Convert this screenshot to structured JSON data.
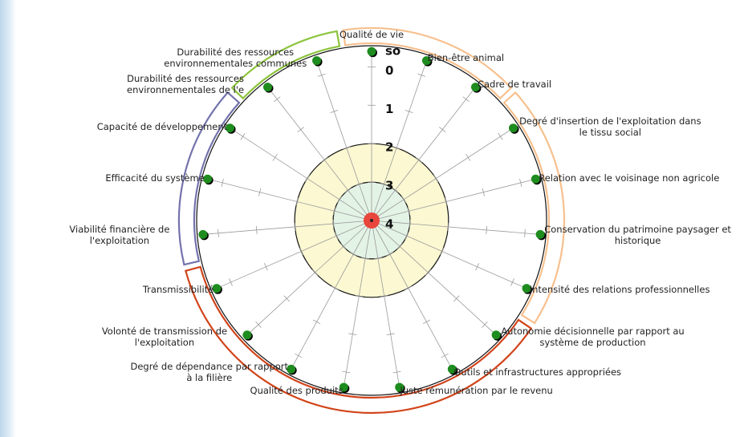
{
  "chart_data": {
    "type": "radar",
    "categories": [
      "Qualité de vie",
      "Bien-être animal",
      "Cadre de travail",
      "Degré d'insertion de l'exploitation dans le tissu social",
      "Relation avec le voisinage non agricole",
      "Conservation du patrimoine paysager et historique",
      "Intensité des relations professionnelles",
      "Autonomie décisionnelle par rapport au système de production",
      "Outils et infrastructures appropriées",
      "Juste rémunération par le revenu",
      "Qualité des produits",
      "Degré de dépendance par rapport à la filière",
      "Volonté de transmission de l'exploitation",
      "Transmissibilité",
      "Viabilité financière de l'exploitation",
      "Efficacité du système",
      "Capacité de développement",
      "Durabilité des ressources environnementales de l'e",
      "Durabilité des ressources environnementales communes"
    ],
    "values": [
      -0.4,
      -0.4,
      -0.4,
      -0.4,
      -0.4,
      -0.4,
      -0.4,
      -0.4,
      -0.4,
      -0.4,
      -0.4,
      -0.4,
      -0.4,
      -0.4,
      -0.4,
      -0.4,
      -0.4,
      -0.4,
      -0.4
    ],
    "color": "#1e8c1e",
    "rlim": [
      4,
      -0.55
    ],
    "rticks": [
      {
        "value": -0.4,
        "label": "so"
      },
      0,
      1,
      2,
      3,
      4
    ],
    "bands": [
      {
        "value": 2,
        "color": "#fbf8d2"
      },
      {
        "value": 3,
        "color": "#e3f3e6"
      }
    ],
    "groups": [
      {
        "from": 0,
        "to": 2,
        "color": "#f7c08e"
      },
      {
        "from": 3,
        "to": 6,
        "color": "#f7c08e"
      },
      {
        "from": 7,
        "to": 13,
        "color": "#d2441a"
      },
      {
        "from": 14,
        "to": 16,
        "color": "#7373ad"
      },
      {
        "from": 17,
        "to": 18,
        "color": "#8cc43c"
      }
    ]
  }
}
